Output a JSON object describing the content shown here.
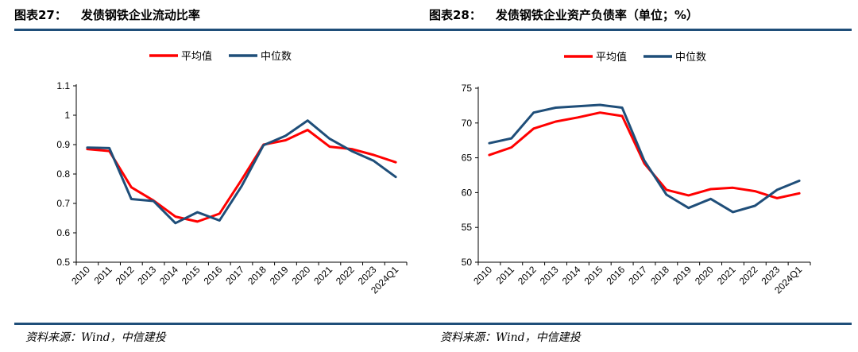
{
  "colors": {
    "accent": "#1F4E79",
    "series_mean": "#FF0000",
    "series_median": "#1F4E79"
  },
  "panels": [
    {
      "fig_no": "图表27：",
      "title": "发债钢铁企业流动比率",
      "source": "资料来源：Wind，中信建投"
    },
    {
      "fig_no": "图表28：",
      "title": "发债钢铁企业资产负债率（单位；%）",
      "source": "资料来源：Wind，中信建投"
    }
  ],
  "chart_data": [
    {
      "type": "line",
      "title": "发债钢铁企业流动比率",
      "categories": [
        "2010",
        "2011",
        "2012",
        "2013",
        "2014",
        "2015",
        "2016",
        "2017",
        "2018",
        "2019",
        "2020",
        "2021",
        "2022",
        "2023",
        "2024Q1"
      ],
      "ylim": [
        0.5,
        1.1
      ],
      "yticks": [
        "0.5",
        "0.6",
        "0.7",
        "0.8",
        "0.9",
        "1",
        "1.1"
      ],
      "legend_position": "top-center",
      "grid": false,
      "series": [
        {
          "name": "平均值",
          "color": "#FF0000",
          "values": [
            0.885,
            0.878,
            0.755,
            0.71,
            0.655,
            0.638,
            0.665,
            0.78,
            0.9,
            0.915,
            0.95,
            0.893,
            0.885,
            0.865,
            0.84
          ]
        },
        {
          "name": "中位数",
          "color": "#1F4E79",
          "values": [
            0.89,
            0.888,
            0.715,
            0.708,
            0.633,
            0.67,
            0.642,
            0.758,
            0.898,
            0.93,
            0.982,
            0.92,
            0.878,
            0.845,
            0.79
          ]
        }
      ]
    },
    {
      "type": "line",
      "title": "发债钢铁企业资产负债率（单位；%）",
      "categories": [
        "2010",
        "2011",
        "2012",
        "2013",
        "2014",
        "2015",
        "2016",
        "2017",
        "2018",
        "2019",
        "2020",
        "2021",
        "2022",
        "2023",
        "2024Q1"
      ],
      "ylim": [
        50,
        75
      ],
      "yticks": [
        "50",
        "55",
        "60",
        "65",
        "70",
        "75"
      ],
      "legend_position": "top-center",
      "grid": false,
      "series": [
        {
          "name": "平均值",
          "color": "#FF0000",
          "values": [
            65.4,
            66.5,
            69.2,
            70.2,
            70.8,
            71.5,
            71.0,
            64.2,
            60.4,
            59.6,
            60.5,
            60.7,
            60.2,
            59.2,
            59.9
          ]
        },
        {
          "name": "中位数",
          "color": "#1F4E79",
          "values": [
            67.1,
            67.8,
            71.5,
            72.2,
            72.4,
            72.6,
            72.2,
            64.6,
            59.7,
            57.8,
            59.1,
            57.2,
            58.1,
            60.4,
            61.7
          ]
        }
      ]
    }
  ]
}
